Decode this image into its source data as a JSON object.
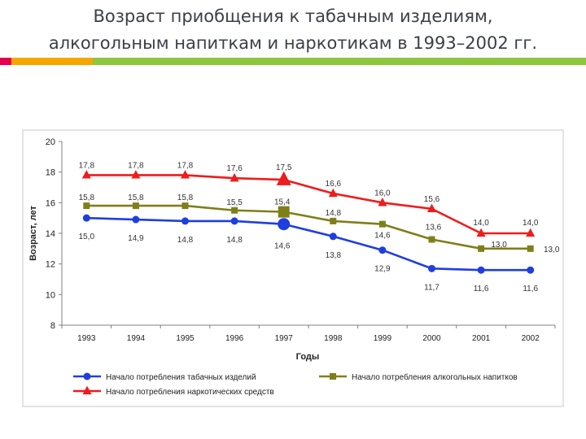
{
  "slide": {
    "title_line1": "Возраст приобщения к табачным изделиям,",
    "title_line2": "алкогольным напиткам и наркотикам в 1993–2002 гг.",
    "bar_colors": [
      "#e4004f",
      "#f5a700",
      "#8dc63f"
    ]
  },
  "chart_data": {
    "type": "line",
    "title": "",
    "xlabel": "Годы",
    "ylabel": "Возраст, лет",
    "ylim": [
      8,
      20
    ],
    "yticks": [
      "8",
      "10",
      "12",
      "14",
      "16",
      "18",
      "20"
    ],
    "categories": [
      "1993",
      "1994",
      "1995",
      "1996",
      "1997",
      "1998",
      "1999",
      "2000",
      "2001",
      "2002"
    ],
    "grid": false,
    "legend_position": "bottom",
    "series": [
      {
        "name": "Начало потребления табачных изделий",
        "color": "#1f3ee0",
        "marker": "circle",
        "values": [
          15.0,
          14.9,
          14.8,
          14.8,
          14.6,
          13.8,
          12.9,
          11.7,
          11.6,
          11.6
        ],
        "labels": [
          "15,0",
          "14,9",
          "14,8",
          "14,8",
          "14,6",
          "13,8",
          "12,9",
          "11,7",
          "11,6",
          "11,6"
        ]
      },
      {
        "name": "Начало потребления алкогольных напитков",
        "color": "#7f7f1a",
        "marker": "square",
        "values": [
          15.8,
          15.8,
          15.8,
          15.5,
          15.4,
          14.8,
          14.6,
          13.6,
          13.0,
          13.0
        ],
        "labels": [
          "15,8",
          "15,8",
          "15,8",
          "15,5",
          "15,4",
          "14,8",
          "14,6",
          "13,6",
          "13,0",
          "13,0"
        ]
      },
      {
        "name": "Начало потребления наркотических средств",
        "color": "#ee1c1c",
        "marker": "triangle",
        "values": [
          17.8,
          17.8,
          17.8,
          17.6,
          17.5,
          16.6,
          16.0,
          15.6,
          14.0,
          14.0
        ],
        "labels": [
          "17,8",
          "17,8",
          "17,8",
          "17,6",
          "17,5",
          "16,6",
          "16,0",
          "15,6",
          "14,0",
          "14,0"
        ]
      }
    ]
  }
}
